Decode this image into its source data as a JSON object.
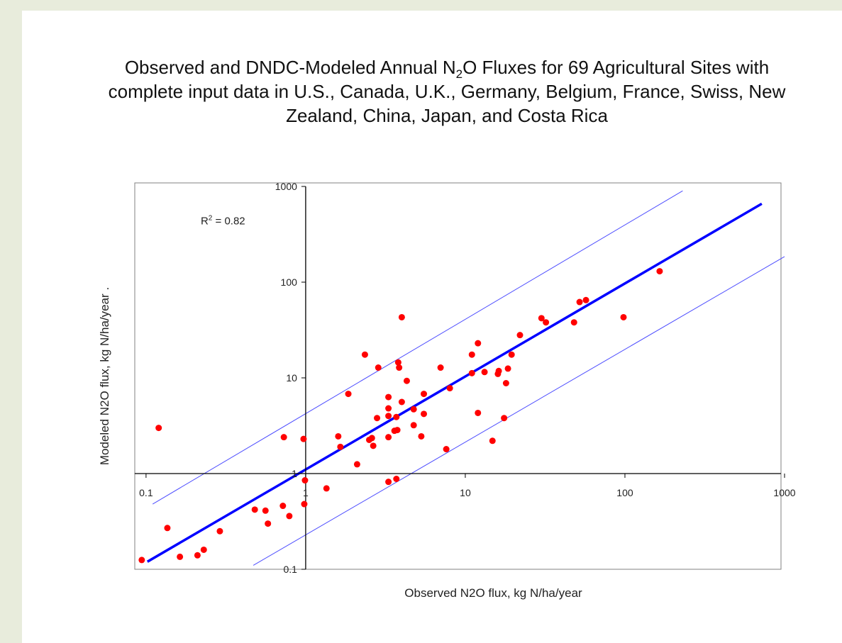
{
  "title": {
    "line1_pre": "Observed and DNDC-Modeled Annual N",
    "line1_sub": "2",
    "line1_post": "O Fluxes for 69 Agricultural Sites with",
    "line2": "complete input data in U.S., Canada, U.K., Germany, Belgium, France, Swiss, New",
    "line3": "Zealand, China, Japan, and Costa Rica"
  },
  "colors": {
    "points": "#ff0000",
    "fit_line": "#0000ff",
    "bound_lines": "#4d4dff",
    "axes": "#000000",
    "frame": "#808080"
  },
  "chart_data": {
    "type": "scatter",
    "xlabel": "Observed N2O flux, kg N/ha/year",
    "ylabel": "Modeled N2O flux, kg N/ha/year .",
    "x_scale": "log",
    "y_scale": "log",
    "xlim": [
      0.085,
      950
    ],
    "ylim": [
      0.1,
      1000
    ],
    "x_ticks": [
      "0.1",
      "1",
      "10",
      "100",
      "1000"
    ],
    "y_ticks": [
      "0.1",
      "1",
      "10",
      "100",
      "1000"
    ],
    "annotation": {
      "text_pre": "R",
      "text_sup": "2",
      "text_post": " = 0.82",
      "x": 0.22,
      "y": 400
    },
    "grid": false,
    "lines": [
      {
        "role": "fit",
        "x": [
          0.102,
          720
        ],
        "y": [
          0.12,
          660
        ]
      },
      {
        "role": "upper",
        "x": [
          0.11,
          230
        ],
        "y": [
          0.48,
          900
        ]
      },
      {
        "role": "lower",
        "x": [
          0.47,
          1000
        ],
        "y": [
          0.11,
          185
        ]
      }
    ],
    "points": [
      [
        0.094,
        0.125
      ],
      [
        0.136,
        0.27
      ],
      [
        0.163,
        0.135
      ],
      [
        0.21,
        0.14
      ],
      [
        0.23,
        0.16
      ],
      [
        0.29,
        0.25
      ],
      [
        0.12,
        3.0
      ],
      [
        0.48,
        0.42
      ],
      [
        0.58,
        0.3
      ],
      [
        0.56,
        0.41
      ],
      [
        0.72,
        0.46
      ],
      [
        0.79,
        0.36
      ],
      [
        0.98,
        0.48
      ],
      [
        0.99,
        0.85
      ],
      [
        0.97,
        2.3
      ],
      [
        0.73,
        2.4
      ],
      [
        1.35,
        0.7
      ],
      [
        1.6,
        2.45
      ],
      [
        1.65,
        1.9
      ],
      [
        1.85,
        6.8
      ],
      [
        2.1,
        1.25
      ],
      [
        2.35,
        17.5
      ],
      [
        2.5,
        2.25
      ],
      [
        2.6,
        2.35
      ],
      [
        2.65,
        1.95
      ],
      [
        2.8,
        3.8
      ],
      [
        2.85,
        12.8
      ],
      [
        3.3,
        0.82
      ],
      [
        3.3,
        2.4
      ],
      [
        3.3,
        4.0
      ],
      [
        3.3,
        4.8
      ],
      [
        3.3,
        6.3
      ],
      [
        3.6,
        2.8
      ],
      [
        3.7,
        0.88
      ],
      [
        3.75,
        2.85
      ],
      [
        3.7,
        3.9
      ],
      [
        3.8,
        14.5
      ],
      [
        3.85,
        12.8
      ],
      [
        4.0,
        43.0
      ],
      [
        4.0,
        5.6
      ],
      [
        4.3,
        9.3
      ],
      [
        4.75,
        3.2
      ],
      [
        4.75,
        4.7
      ],
      [
        5.3,
        2.45
      ],
      [
        5.5,
        4.2
      ],
      [
        5.5,
        6.8
      ],
      [
        7.0,
        12.8
      ],
      [
        7.6,
        1.8
      ],
      [
        8.0,
        7.8
      ],
      [
        11.0,
        11.2
      ],
      [
        11.0,
        17.5
      ],
      [
        12.0,
        4.3
      ],
      [
        12.0,
        23.0
      ],
      [
        13.2,
        11.5
      ],
      [
        14.8,
        2.2
      ],
      [
        16.0,
        11.0
      ],
      [
        16.2,
        11.8
      ],
      [
        17.5,
        3.8
      ],
      [
        18.0,
        8.8
      ],
      [
        18.5,
        12.5
      ],
      [
        19.5,
        17.5
      ],
      [
        22.0,
        28.0
      ],
      [
        30.0,
        42.0
      ],
      [
        32.0,
        38.0
      ],
      [
        48.0,
        38.0
      ],
      [
        52.0,
        62.0
      ],
      [
        57.0,
        65.0
      ],
      [
        98.0,
        43.0
      ],
      [
        165.0,
        130.0
      ]
    ]
  }
}
